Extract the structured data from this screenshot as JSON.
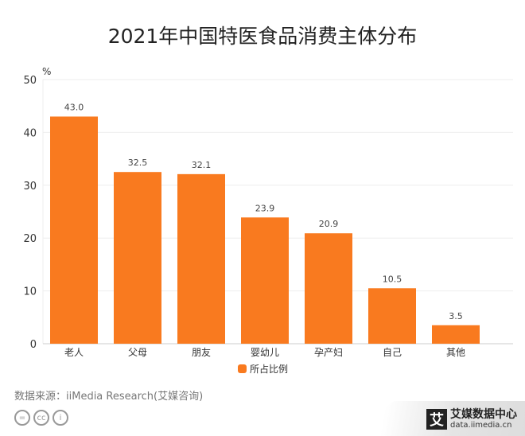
{
  "chart_data": {
    "type": "bar",
    "title": "2021年中国特医食品消费主体分布",
    "ylabel": "%",
    "ylim": [
      0,
      50
    ],
    "yticks": [
      0,
      10,
      20,
      30,
      40,
      50
    ],
    "categories": [
      "老人",
      "父母",
      "朋友",
      "婴幼儿",
      "孕产妇",
      "自己",
      "其他"
    ],
    "series": [
      {
        "name": "所占比例",
        "values": [
          43.0,
          32.5,
          32.1,
          23.9,
          20.9,
          10.5,
          3.5
        ],
        "labels": [
          "43.0",
          "32.5",
          "32.1",
          "23.9",
          "20.9",
          "10.5",
          "3.5"
        ],
        "color": "#f97a1f"
      }
    ],
    "grid": true,
    "legend": "bottom"
  },
  "source": "数据来源：iiMedia Research(艾媒咨询)",
  "license_icons": [
    "cc-nd-icon",
    "cc-icon",
    "cc-by-icon"
  ],
  "license_glyphs": [
    "=",
    "cc",
    "i"
  ],
  "logo": {
    "mark": "艾",
    "name": "艾媒数据中心",
    "url": "data.iimedia.cn"
  }
}
